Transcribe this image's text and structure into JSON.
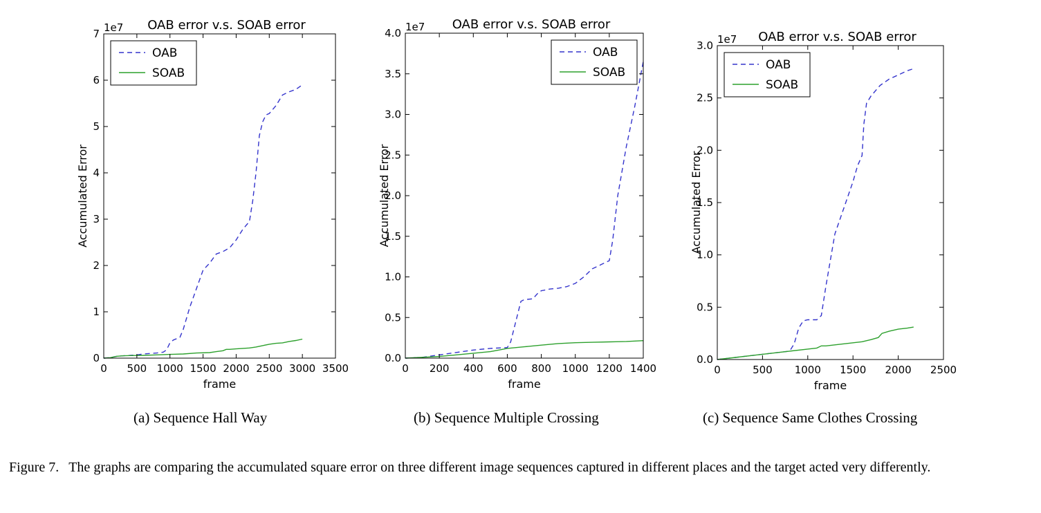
{
  "charts_meta": {
    "oab_color": "#3333cc",
    "soab_color": "#2ca02c"
  },
  "chart_data": [
    {
      "type": "line",
      "title": "OAB error v.s. SOAB error",
      "xlabel": "frame",
      "ylabel": "Accumulated Error",
      "y_multiplier_label": "1e7",
      "xlim": [
        0,
        3500
      ],
      "ylim": [
        0,
        7
      ],
      "xticks": [
        0,
        500,
        1000,
        1500,
        2000,
        2500,
        3000,
        3500
      ],
      "yticks": [
        0,
        1,
        2,
        3,
        4,
        5,
        6,
        7
      ],
      "legend_position": "upper left",
      "series": [
        {
          "name": "OAB",
          "style": "dashed",
          "color": "#3333cc",
          "x": [
            0,
            100,
            200,
            300,
            400,
            500,
            600,
            700,
            800,
            900,
            950,
            1000,
            1050,
            1100,
            1150,
            1200,
            1300,
            1400,
            1500,
            1600,
            1700,
            1800,
            1900,
            2000,
            2100,
            2200,
            2250,
            2300,
            2350,
            2400,
            2450,
            2500,
            2600,
            2700,
            2800,
            2900,
            3000
          ],
          "y": [
            0,
            0.01,
            0.04,
            0.05,
            0.06,
            0.07,
            0.09,
            0.1,
            0.11,
            0.13,
            0.18,
            0.33,
            0.39,
            0.42,
            0.45,
            0.62,
            1.1,
            1.5,
            1.9,
            2.05,
            2.25,
            2.3,
            2.38,
            2.55,
            2.78,
            2.95,
            3.4,
            4.0,
            4.8,
            5.1,
            5.25,
            5.28,
            5.45,
            5.68,
            5.75,
            5.8,
            5.9
          ]
        },
        {
          "name": "SOAB",
          "style": "solid",
          "color": "#2ca02c",
          "x": [
            0,
            100,
            200,
            300,
            400,
            600,
            800,
            1000,
            1200,
            1400,
            1600,
            1700,
            1800,
            1850,
            1900,
            2000,
            2100,
            2200,
            2300,
            2400,
            2500,
            2600,
            2700,
            2800,
            2900,
            3000
          ],
          "y": [
            0,
            0.01,
            0.04,
            0.05,
            0.055,
            0.06,
            0.07,
            0.08,
            0.09,
            0.11,
            0.12,
            0.14,
            0.16,
            0.19,
            0.19,
            0.2,
            0.21,
            0.22,
            0.24,
            0.27,
            0.3,
            0.32,
            0.33,
            0.36,
            0.38,
            0.41
          ]
        }
      ],
      "caption": "(a) Sequence Hall Way"
    },
    {
      "type": "line",
      "title": "OAB error v.s. SOAB error",
      "xlabel": "frame",
      "ylabel": "Accumulated Error",
      "y_multiplier_label": "1e7",
      "xlim": [
        0,
        1400
      ],
      "ylim": [
        0,
        4.0
      ],
      "xticks": [
        0,
        200,
        400,
        600,
        800,
        1000,
        1200,
        1400
      ],
      "yticks": [
        0.0,
        0.5,
        1.0,
        1.5,
        2.0,
        2.5,
        3.0,
        3.5,
        4.0
      ],
      "ytick_labels": [
        "0.0",
        "0.5",
        "1.0",
        "1.5",
        "2.0",
        "2.5",
        "3.0",
        "3.5",
        "4.0"
      ],
      "legend_position": "upper right",
      "series": [
        {
          "name": "OAB",
          "style": "dashed",
          "color": "#3333cc",
          "x": [
            0,
            100,
            200,
            300,
            400,
            500,
            600,
            620,
            650,
            680,
            700,
            750,
            780,
            800,
            850,
            900,
            950,
            1000,
            1050,
            1100,
            1150,
            1200,
            1220,
            1250,
            1300,
            1350,
            1400
          ],
          "y": [
            0,
            0.01,
            0.04,
            0.07,
            0.1,
            0.12,
            0.13,
            0.2,
            0.45,
            0.7,
            0.72,
            0.73,
            0.8,
            0.83,
            0.85,
            0.86,
            0.88,
            0.92,
            1.0,
            1.1,
            1.15,
            1.2,
            1.45,
            2.0,
            2.6,
            3.1,
            3.65
          ]
        },
        {
          "name": "SOAB",
          "style": "solid",
          "color": "#2ca02c",
          "x": [
            0,
            100,
            200,
            300,
            400,
            500,
            550,
            600,
            700,
            800,
            900,
            1000,
            1100,
            1200,
            1300,
            1400
          ],
          "y": [
            0,
            0.01,
            0.02,
            0.04,
            0.06,
            0.08,
            0.1,
            0.12,
            0.14,
            0.16,
            0.18,
            0.19,
            0.195,
            0.2,
            0.205,
            0.215
          ]
        }
      ],
      "caption": "(b) Sequence Multiple Crossing"
    },
    {
      "type": "line",
      "title": "OAB error v.s. SOAB error",
      "xlabel": "frame",
      "ylabel": "Accumulated Error",
      "y_multiplier_label": "1e7",
      "xlim": [
        0,
        2500
      ],
      "ylim": [
        0,
        3.0
      ],
      "xticks": [
        0,
        500,
        1000,
        1500,
        2000,
        2500
      ],
      "yticks": [
        0.0,
        0.5,
        1.0,
        1.5,
        2.0,
        2.5,
        3.0
      ],
      "ytick_labels": [
        "0.0",
        "0.5",
        "1.0",
        "1.5",
        "2.0",
        "2.5",
        "3.0"
      ],
      "legend_position": "upper left",
      "series": [
        {
          "name": "OAB",
          "style": "dashed",
          "color": "#3333cc",
          "x": [
            0,
            200,
            400,
            600,
            800,
            850,
            900,
            950,
            1000,
            1050,
            1100,
            1150,
            1200,
            1250,
            1300,
            1400,
            1500,
            1550,
            1600,
            1620,
            1650,
            1700,
            1800,
            1900,
            2000,
            2100,
            2170
          ],
          "y": [
            0,
            0.02,
            0.04,
            0.06,
            0.08,
            0.15,
            0.3,
            0.37,
            0.38,
            0.38,
            0.38,
            0.42,
            0.7,
            0.95,
            1.2,
            1.45,
            1.7,
            1.85,
            1.95,
            2.25,
            2.45,
            2.52,
            2.62,
            2.68,
            2.72,
            2.76,
            2.78
          ]
        },
        {
          "name": "SOAB",
          "style": "solid",
          "color": "#2ca02c",
          "x": [
            0,
            200,
            400,
            600,
            800,
            1000,
            1100,
            1150,
            1200,
            1300,
            1400,
            1500,
            1600,
            1700,
            1780,
            1820,
            1900,
            2000,
            2100,
            2170
          ],
          "y": [
            0,
            0.02,
            0.04,
            0.06,
            0.08,
            0.1,
            0.11,
            0.13,
            0.13,
            0.14,
            0.15,
            0.16,
            0.17,
            0.19,
            0.21,
            0.25,
            0.27,
            0.29,
            0.3,
            0.31
          ]
        }
      ],
      "caption": "(c) Sequence Same Clothes Crossing"
    }
  ],
  "figure_caption": {
    "label": "Figure 7.",
    "text": "The graphs are comparing the accumulated square error on three different image sequences captured in different places and the target acted very differently."
  }
}
